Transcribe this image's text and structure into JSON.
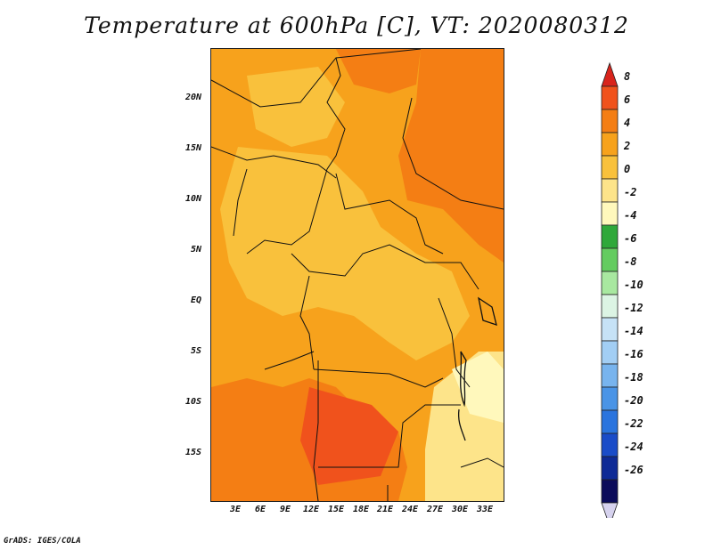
{
  "map": {
    "title": "Temperature at 600hPa [C], VT: 2020080312",
    "lat_ticks": [
      "20N",
      "15N",
      "10N",
      "5N",
      "EQ",
      "5S",
      "10S",
      "15S"
    ],
    "lon_ticks": [
      "3E",
      "6E",
      "9E",
      "12E",
      "15E",
      "18E",
      "21E",
      "24E",
      "27E",
      "30E",
      "33E"
    ],
    "credit": "GrADS: IGES/COLA",
    "colorbar": {
      "labels": [
        "8",
        "6",
        "4",
        "2",
        "0",
        "-2",
        "-4",
        "-6",
        "-8",
        "-10",
        "-12",
        "-14",
        "-16",
        "-18",
        "-20",
        "-22",
        "-24",
        "-26"
      ],
      "colors": [
        "#d8241c",
        "#f0521c",
        "#f47e14",
        "#f7a21c",
        "#f9c13c",
        "#fde48a",
        "#fff8bc",
        "#2fa83a",
        "#64cc60",
        "#a8e8a0",
        "#dcf4e4",
        "#c6e2f6",
        "#a2cef4",
        "#78b4ee",
        "#4a94e6",
        "#2a74de",
        "#1a4cc8",
        "#0e2a96",
        "#0b0b5a",
        "#d6d2ee"
      ]
    }
  }
}
